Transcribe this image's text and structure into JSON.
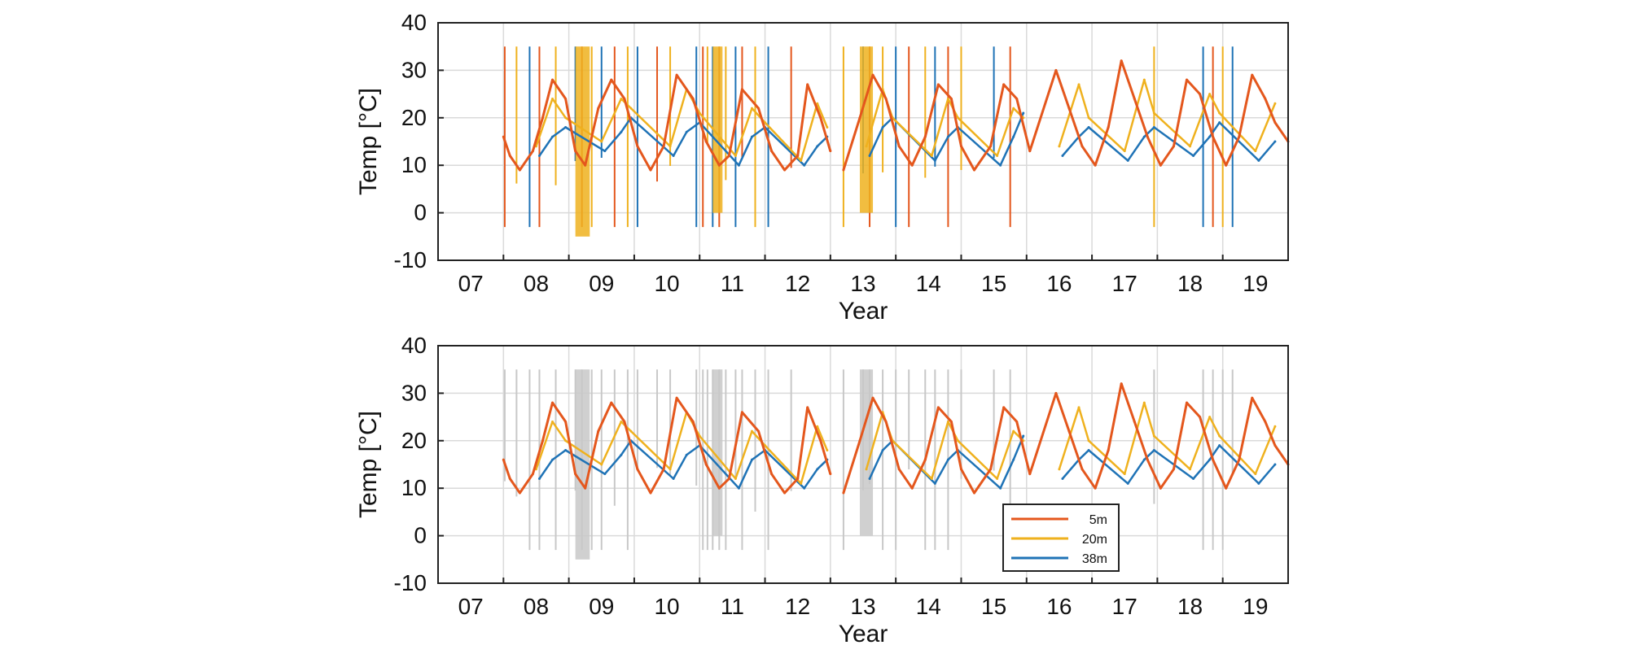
{
  "chart_data": [
    {
      "type": "line",
      "panel": "raw",
      "xlabel": "Year",
      "ylabel": "Temp [°C]",
      "ylim": [
        -10,
        40
      ],
      "yticks": [
        -10,
        0,
        10,
        20,
        30,
        40
      ],
      "xlim": [
        2006.5,
        2019.5
      ],
      "xticks": [
        2007,
        2008,
        2009,
        2010,
        2011,
        2012,
        2013,
        2014,
        2015,
        2016,
        2017,
        2018,
        2019
      ],
      "xtick_labels": [
        "07",
        "08",
        "09",
        "10",
        "11",
        "12",
        "13",
        "14",
        "15",
        "16",
        "17",
        "18",
        "19"
      ],
      "grid": true,
      "series": [
        {
          "name": "5m",
          "color": "#e4571d",
          "x": [
            2007.5,
            2007.6,
            2007.75,
            2007.95,
            2008.1,
            2008.25,
            2008.45,
            2008.6,
            2008.75,
            2008.95,
            2009.15,
            2009.35,
            2009.55,
            2009.75,
            2009.95,
            2010.15,
            2010.4,
            2010.6,
            2010.8,
            2010.95,
            2011.15,
            2011.4,
            2011.6,
            2011.8,
            2012.0,
            2012.15,
            2012.35,
            2012.5,
            2012.7,
            2012.95,
            2013.15,
            2013.35,
            2013.55,
            2013.75,
            2013.95,
            2014.15,
            2014.35,
            2014.5,
            2014.7,
            2014.95,
            2015.15,
            2015.35,
            2015.55,
            2015.95,
            2016.15,
            2016.35,
            2016.55,
            2016.75,
            2016.95,
            2017.15,
            2017.35,
            2017.55,
            2017.75,
            2017.95,
            2018.15,
            2018.35,
            2018.55,
            2018.75,
            2018.95,
            2019.15,
            2019.3,
            2019.5
          ],
          "y": [
            16,
            12,
            9,
            13,
            20,
            28,
            24,
            13,
            10,
            22,
            28,
            24,
            14,
            9,
            14,
            29,
            24,
            15,
            10,
            12,
            26,
            22,
            13,
            9,
            12,
            27,
            20,
            13,
            9,
            20,
            29,
            24,
            14,
            10,
            16,
            27,
            24,
            14,
            9,
            14,
            27,
            24,
            13,
            30,
            22,
            14,
            10,
            18,
            32,
            24,
            16,
            10,
            14,
            28,
            25,
            16,
            10,
            16,
            29,
            24,
            19,
            15
          ]
        },
        {
          "name": "20m",
          "color": "#efb11e",
          "x": [
            2008.0,
            2008.25,
            2008.45,
            2009.0,
            2009.3,
            2009.45,
            2010.05,
            2010.3,
            2010.5,
            2011.05,
            2011.3,
            2011.5,
            2012.05,
            2012.3,
            2012.45,
            2013.05,
            2013.3,
            2013.45,
            2014.05,
            2014.3,
            2014.45,
            2015.05,
            2015.3,
            2015.45,
            2016.0,
            2016.3,
            2016.45,
            2017.0,
            2017.3,
            2017.45,
            2018.0,
            2018.3,
            2018.45,
            2019.0,
            2019.3
          ],
          "y": [
            14,
            24,
            20,
            15,
            24,
            22,
            14,
            26,
            21,
            12,
            22,
            19,
            11,
            23,
            18,
            14,
            26,
            20,
            12,
            24,
            20,
            12,
            22,
            20,
            14,
            27,
            20,
            13,
            28,
            21,
            14,
            25,
            21,
            13,
            23
          ]
        },
        {
          "name": "38m",
          "color": "#1f73b6",
          "x": [
            2008.05,
            2008.25,
            2008.45,
            2009.05,
            2009.3,
            2009.45,
            2010.1,
            2010.3,
            2010.5,
            2011.1,
            2011.3,
            2011.5,
            2012.1,
            2012.3,
            2012.45,
            2013.1,
            2013.3,
            2013.45,
            2014.1,
            2014.3,
            2014.45,
            2015.1,
            2015.3,
            2015.45,
            2016.05,
            2016.3,
            2016.45,
            2017.05,
            2017.3,
            2017.45,
            2018.05,
            2018.3,
            2018.45,
            2019.05,
            2019.3
          ],
          "y": [
            12,
            16,
            18,
            13,
            17,
            20,
            12,
            17,
            19,
            10,
            16,
            18,
            10,
            14,
            16,
            12,
            18,
            20,
            11,
            16,
            18,
            10,
            16,
            21,
            12,
            16,
            18,
            11,
            16,
            18,
            12,
            16,
            19,
            11,
            15
          ]
        }
      ]
    },
    {
      "type": "line",
      "panel": "cleaned",
      "xlabel": "Year",
      "ylabel": "Temp [°C]",
      "ylim": [
        -10,
        40
      ],
      "yticks": [
        -10,
        0,
        10,
        20,
        30,
        40
      ],
      "xlim": [
        2006.5,
        2019.5
      ],
      "xticks": [
        2007,
        2008,
        2009,
        2010,
        2011,
        2012,
        2013,
        2014,
        2015,
        2016,
        2017,
        2018,
        2019
      ],
      "xtick_labels": [
        "07",
        "08",
        "09",
        "10",
        "11",
        "12",
        "13",
        "14",
        "15",
        "16",
        "17",
        "18",
        "19"
      ],
      "grid": true,
      "legend": {
        "position": "lower-right",
        "entries": [
          "5m",
          "20m",
          "38m"
        ]
      },
      "series": [
        {
          "name": "5m",
          "color": "#e4571d"
        },
        {
          "name": "20m",
          "color": "#efb11e"
        },
        {
          "name": "38m",
          "color": "#1f73b6"
        }
      ],
      "removed_color": "#c8c8c8"
    }
  ],
  "legend": {
    "items": [
      {
        "label": "5m",
        "color": "#e4571d"
      },
      {
        "label": "20m",
        "color": "#efb11e"
      },
      {
        "label": "38m",
        "color": "#1f73b6"
      }
    ]
  }
}
